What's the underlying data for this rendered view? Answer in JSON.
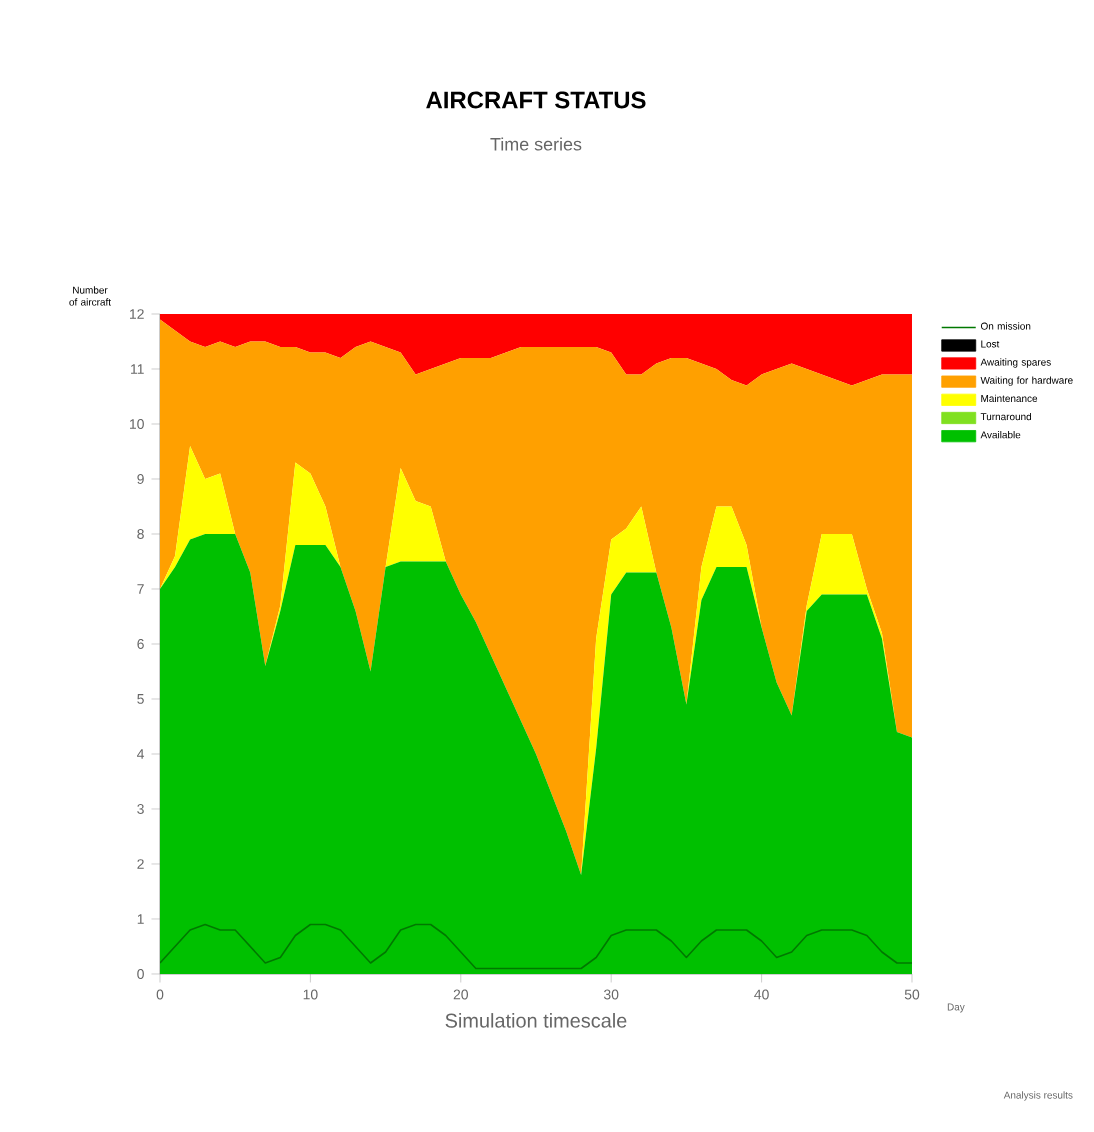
{
  "chart_data": {
    "type": "area",
    "stacked": true,
    "title": "AIRCRAFT STATUS",
    "subtitle": "Time series",
    "xlabel": "Simulation timescale",
    "ylabel": "Number of aircraft",
    "annotations": [
      "Day",
      "Analysis results"
    ],
    "x": [
      0,
      1,
      2,
      3,
      4,
      5,
      6,
      7,
      8,
      9,
      10,
      11,
      12,
      13,
      14,
      15,
      16,
      17,
      18,
      19,
      20,
      21,
      22,
      23,
      24,
      25,
      26,
      27,
      28,
      29,
      30,
      31,
      32,
      33,
      34,
      35,
      36,
      37,
      38,
      39,
      40,
      41,
      42,
      43,
      44,
      45,
      46,
      47,
      48,
      49,
      50
    ],
    "xlim": [
      0,
      50
    ],
    "xticks": [
      0,
      10,
      20,
      30,
      40,
      50
    ],
    "ylim": [
      0,
      12
    ],
    "yticks": [
      0,
      1,
      2,
      3,
      4,
      5,
      6,
      7,
      8,
      9,
      10,
      11,
      12
    ],
    "legend": "right",
    "series": [
      {
        "name": "Available",
        "color": "#00c000",
        "values": [
          7.0,
          7.4,
          7.9,
          8.0,
          8.0,
          8.0,
          7.3,
          5.6,
          6.6,
          7.8,
          7.8,
          7.8,
          7.4,
          6.6,
          5.5,
          7.4,
          7.5,
          7.5,
          7.5,
          7.5,
          6.9,
          6.4,
          5.8,
          5.2,
          4.6,
          4.0,
          3.3,
          2.6,
          1.8,
          4.1,
          6.9,
          7.3,
          7.3,
          7.3,
          6.3,
          4.9,
          6.8,
          7.4,
          7.4,
          7.4,
          6.3,
          5.3,
          4.7,
          6.6,
          6.9,
          6.9,
          6.9,
          6.9,
          6.1,
          4.4,
          4.3
        ]
      },
      {
        "name": "Turnaround",
        "color": "#80e020",
        "values": [
          null,
          null,
          null,
          null,
          null,
          null,
          null,
          null,
          null,
          null,
          null,
          null,
          null,
          null,
          null,
          null,
          null,
          null,
          null,
          null,
          null,
          null,
          null,
          null,
          null,
          null,
          null,
          null,
          null,
          null,
          null,
          null,
          null,
          null,
          null,
          null,
          null,
          null,
          null,
          null,
          null,
          null,
          null,
          null,
          null,
          null,
          null,
          null,
          null,
          null,
          null
        ]
      },
      {
        "name": "Maintenance",
        "color": "#ffff00",
        "values": [
          0,
          0.2,
          1.7,
          1.0,
          1.1,
          0,
          0,
          0,
          0.1,
          1.5,
          1.3,
          0.7,
          0,
          0,
          0,
          0,
          1.7,
          1.1,
          1.0,
          0,
          0,
          0,
          0,
          0,
          0,
          0,
          0,
          0,
          0,
          2.0,
          1.0,
          0.8,
          1.2,
          0,
          0,
          0,
          0.6,
          1.1,
          1.1,
          0.4,
          0,
          0,
          0,
          0.1,
          1.1,
          1.1,
          1.1,
          0.1,
          0.1,
          0,
          0
        ]
      },
      {
        "name": "Waiting for hardware",
        "color": "#ffa000",
        "values": [
          4.9,
          4.1,
          1.9,
          2.4,
          2.4,
          3.4,
          4.2,
          5.9,
          4.7,
          2.1,
          2.2,
          2.8,
          3.8,
          4.8,
          6.0,
          4.0,
          2.1,
          2.3,
          2.5,
          3.6,
          4.3,
          4.8,
          5.4,
          6.1,
          6.8,
          7.4,
          8.1,
          8.8,
          9.6,
          5.3,
          3.4,
          2.8,
          2.4,
          3.8,
          4.9,
          6.3,
          3.7,
          2.5,
          2.3,
          2.9,
          4.6,
          5.7,
          6.4,
          4.3,
          2.9,
          2.8,
          2.7,
          3.8,
          4.7,
          6.5,
          6.6
        ]
      },
      {
        "name": "Awaiting spares",
        "color": "#ff0000",
        "values": [
          0.1,
          0.3,
          0.5,
          0.6,
          0.5,
          0.6,
          0.5,
          0.5,
          0.6,
          0.6,
          0.7,
          0.7,
          0.8,
          0.6,
          0.5,
          0.6,
          0.7,
          1.1,
          1.0,
          0.9,
          0.8,
          0.8,
          0.8,
          0.7,
          0.6,
          0.6,
          0.6,
          0.6,
          0.6,
          0.6,
          0.7,
          1.1,
          1.1,
          0.9,
          0.8,
          0.8,
          0.9,
          1.0,
          1.2,
          1.3,
          1.1,
          1.0,
          0.9,
          1.0,
          1.1,
          1.2,
          1.3,
          1.2,
          1.1,
          1.1,
          1.1
        ]
      },
      {
        "name": "Lost",
        "color": "#000000",
        "values": [
          null,
          null,
          null,
          null,
          null,
          null,
          null,
          null,
          null,
          null,
          null,
          null,
          null,
          null,
          null,
          null,
          null,
          null,
          null,
          null,
          null,
          null,
          null,
          null,
          null,
          null,
          null,
          null,
          null,
          null,
          null,
          null,
          null,
          null,
          null,
          null,
          null,
          null,
          null,
          null,
          null,
          null,
          null,
          null,
          null,
          null,
          null,
          null,
          null,
          null,
          null
        ]
      },
      {
        "name": "On mission",
        "type": "line",
        "color": "#007800",
        "values": [
          0.2,
          0.5,
          0.8,
          0.9,
          0.8,
          0.8,
          0.5,
          0.2,
          0.3,
          0.7,
          0.9,
          0.9,
          0.8,
          0.5,
          0.2,
          0.4,
          0.8,
          0.9,
          0.9,
          0.7,
          0.4,
          0.1,
          0.1,
          0.1,
          0.1,
          0.1,
          0.1,
          0.1,
          0.1,
          0.3,
          0.7,
          0.8,
          0.8,
          0.8,
          0.6,
          0.3,
          0.6,
          0.8,
          0.8,
          0.8,
          0.6,
          0.3,
          0.4,
          0.7,
          0.8,
          0.8,
          0.8,
          0.7,
          0.4,
          0.2,
          0.2
        ]
      }
    ]
  }
}
